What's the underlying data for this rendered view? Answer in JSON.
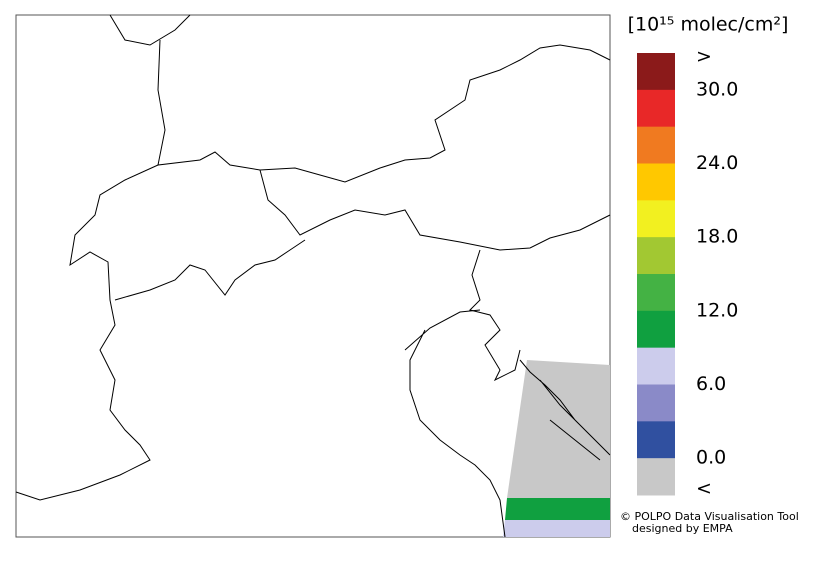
{
  "colorbar": {
    "unit": "[10¹⁵ molec/cm²]",
    "colors": [
      "#8b1a1a",
      "#e82828",
      "#f07a20",
      "#ffc800",
      "#f2f020",
      "#a2c832",
      "#44b244",
      "#10a040",
      "#ccccec",
      "#8a8ac8",
      "#3050a0",
      "#c8c8c8"
    ],
    "lim": [
      0,
      30
    ],
    "ticks": [
      {
        "value": 30,
        "label": "30.0"
      },
      {
        "value": 24,
        "label": "24.0"
      },
      {
        "value": 18,
        "label": "18.0"
      },
      {
        "value": 12,
        "label": "12.0"
      },
      {
        "value": 6,
        "label": "6.0"
      },
      {
        "value": 0,
        "label": "0.0"
      }
    ],
    "over_label": ">",
    "under_label": "<"
  },
  "credit": {
    "line1": "© POLPO Data Visualisation Tool",
    "line2": "designed by EMPA"
  }
}
